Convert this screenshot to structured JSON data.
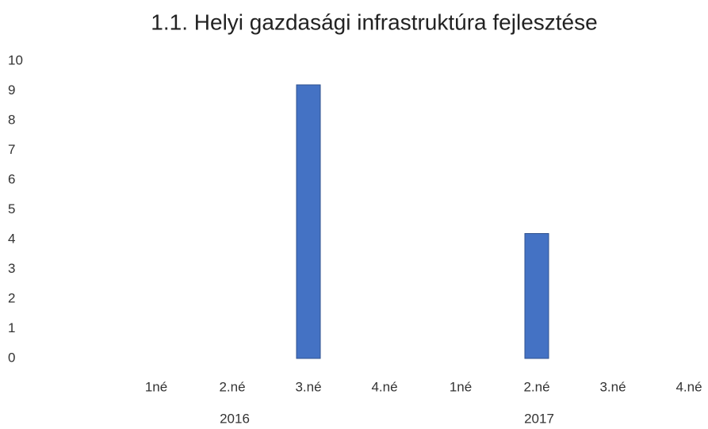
{
  "chart_data": {
    "type": "bar",
    "title": "1.1. Helyi gazdasági infrastruktúra fejlesztése",
    "categories": [
      "1né",
      "2.né",
      "3.né",
      "4.né",
      "1né",
      "2.né",
      "3.né",
      "4.né"
    ],
    "group_labels": [
      "2016",
      "2017"
    ],
    "values": [
      0,
      0,
      9.2,
      0,
      0,
      4.2,
      0,
      0
    ],
    "color": "#4472c4",
    "ylim": [
      0,
      10
    ],
    "yticks": [
      0,
      1,
      2,
      3,
      4,
      5,
      6,
      7,
      8,
      9,
      10
    ],
    "grid": false
  }
}
